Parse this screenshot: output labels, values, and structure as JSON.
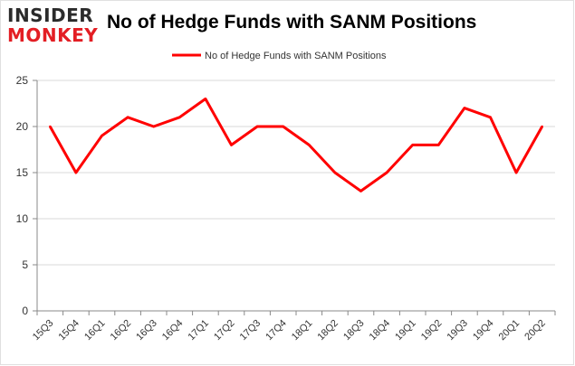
{
  "logo": {
    "line1": "INSIDER",
    "line2": "MONKEY"
  },
  "colors": {
    "series": "#ff0000",
    "grid": "#d9d9d9",
    "axis": "#888888",
    "border": "#e0e0e0",
    "logo_red": "#e31e24",
    "logo_dark": "#2b2b2b"
  },
  "chart_data": {
    "type": "line",
    "title": "No of Hedge Funds with SANM Positions",
    "xlabel": "",
    "ylabel": "",
    "categories": [
      "15Q3",
      "15Q4",
      "16Q1",
      "16Q2",
      "16Q3",
      "16Q4",
      "17Q1",
      "17Q2",
      "17Q3",
      "17Q4",
      "18Q1",
      "18Q2",
      "18Q3",
      "18Q4",
      "19Q1",
      "19Q2",
      "19Q3",
      "19Q4",
      "20Q1",
      "20Q2"
    ],
    "series": [
      {
        "name": "No of Hedge Funds with SANM Positions",
        "values": [
          20,
          15,
          19,
          21,
          20,
          21,
          23,
          18,
          20,
          20,
          18,
          15,
          13,
          15,
          18,
          18,
          22,
          21,
          15,
          20
        ]
      }
    ],
    "ylim": [
      0,
      25
    ],
    "yticks": [
      0,
      5,
      10,
      15,
      20,
      25
    ],
    "grid": true,
    "legend": "top-center"
  }
}
